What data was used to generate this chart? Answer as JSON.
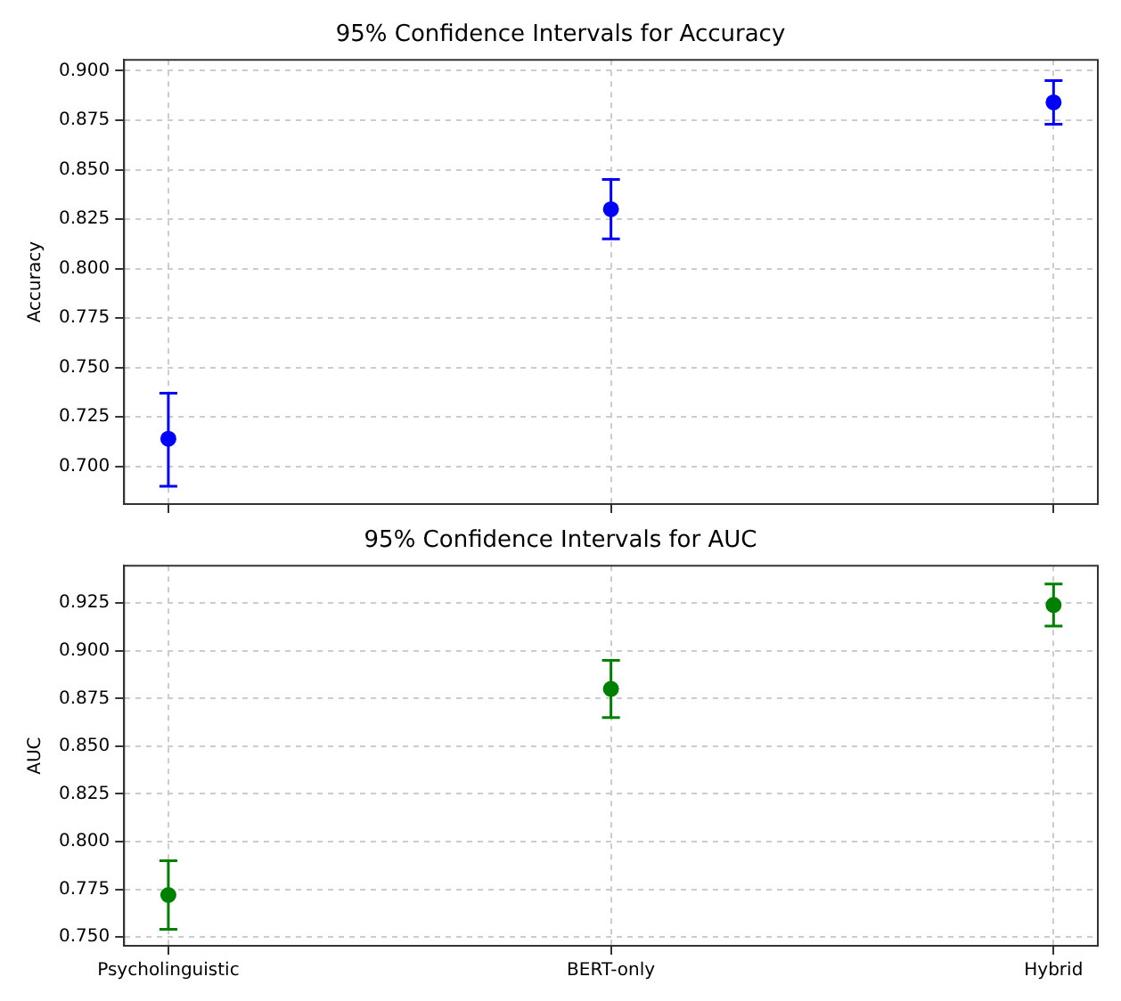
{
  "chart_data": [
    {
      "type": "scatter",
      "title": "95% Confidence Intervals for Accuracy",
      "ylabel": "Accuracy",
      "categories": [
        null,
        null,
        null
      ],
      "series": [
        {
          "color": "#0000ff",
          "values": [
            0.714,
            0.83,
            0.884
          ],
          "errors": [
            [
              0.69,
              0.737
            ],
            [
              0.815,
              0.845
            ],
            [
              0.873,
              0.895
            ]
          ]
        }
      ],
      "ylim": [
        0.681,
        0.9055
      ],
      "yticks": [
        {
          "value": 0.7,
          "label": "0.700"
        },
        {
          "value": 0.725,
          "label": "0.725"
        },
        {
          "value": 0.75,
          "label": "0.750"
        },
        {
          "value": 0.775,
          "label": "0.775"
        },
        {
          "value": 0.8,
          "label": "0.800"
        },
        {
          "value": 0.825,
          "label": "0.825"
        },
        {
          "value": 0.85,
          "label": "0.850"
        },
        {
          "value": 0.875,
          "label": "0.875"
        },
        {
          "value": 0.9,
          "label": "0.900"
        }
      ],
      "grid": true,
      "marker": "circle",
      "tick_labels": "y"
    },
    {
      "type": "scatter",
      "title": "95% Confidence Intervals for AUC",
      "ylabel": "AUC",
      "categories": [
        "Psycholinguistic",
        "BERT-only",
        "Hybrid"
      ],
      "series": [
        {
          "color": "#008000",
          "values": [
            0.772,
            0.88,
            0.924
          ],
          "errors": [
            [
              0.754,
              0.79
            ],
            [
              0.865,
              0.895
            ],
            [
              0.913,
              0.935
            ]
          ]
        }
      ],
      "ylim": [
        0.7454,
        0.9446
      ],
      "yticks": [
        {
          "value": 0.75,
          "label": "0.750"
        },
        {
          "value": 0.775,
          "label": "0.775"
        },
        {
          "value": 0.8,
          "label": "0.800"
        },
        {
          "value": 0.825,
          "label": "0.825"
        },
        {
          "value": 0.85,
          "label": "0.850"
        },
        {
          "value": 0.875,
          "label": "0.875"
        },
        {
          "value": 0.9,
          "label": "0.900"
        },
        {
          "value": 0.925,
          "label": "0.925"
        }
      ],
      "grid": true,
      "marker": "circle"
    }
  ]
}
